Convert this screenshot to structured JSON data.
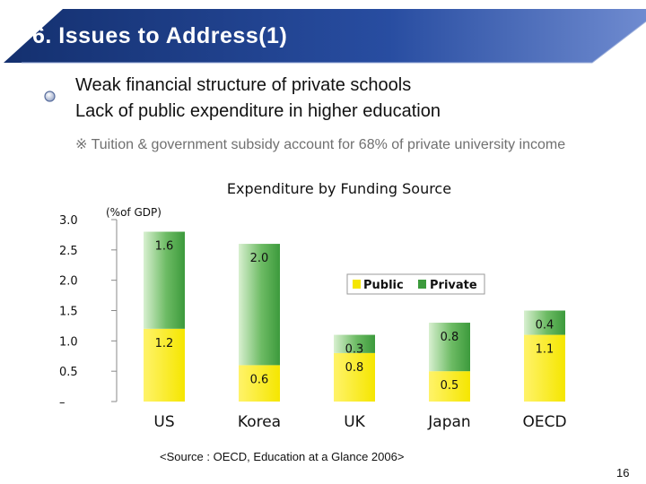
{
  "slide": {
    "title": "6.  Issues to Address(1)",
    "bullets": [
      "Weak financial structure of private schools",
      "Lack of public expenditure in higher education"
    ],
    "note": "※ Tuition & government subsidy account for 68% of private university income",
    "source": "<Source : OECD, Education at a Glance 2006>",
    "page_number": "16"
  },
  "colors": {
    "title_bar": "#1f3b8a",
    "public": "#f5e600",
    "private": "#3c9a3c",
    "text_muted": "#707070"
  },
  "chart_data": {
    "type": "bar",
    "stacked": true,
    "title": "Expenditure by Funding Source",
    "unit_label": "(%of GDP)",
    "categories": [
      "US",
      "Korea",
      "UK",
      "Japan",
      "OECD"
    ],
    "series": [
      {
        "name": "Public",
        "values": [
          1.2,
          0.6,
          0.8,
          0.5,
          1.1
        ],
        "labels": [
          "1.2",
          "0.6",
          "0.8",
          "0.5",
          "1.1"
        ]
      },
      {
        "name": "Private",
        "values": [
          1.6,
          2.0,
          0.3,
          0.8,
          0.4
        ],
        "labels": [
          "1.6",
          "2.0",
          "0.3",
          "0.8",
          "0.4"
        ]
      }
    ],
    "yticks": [
      "–",
      "0.5",
      "1.0",
      "1.5",
      "2.0",
      "2.5",
      "3.0"
    ],
    "ylim": [
      0,
      3.0
    ],
    "legend_position": "right",
    "grid": false
  }
}
